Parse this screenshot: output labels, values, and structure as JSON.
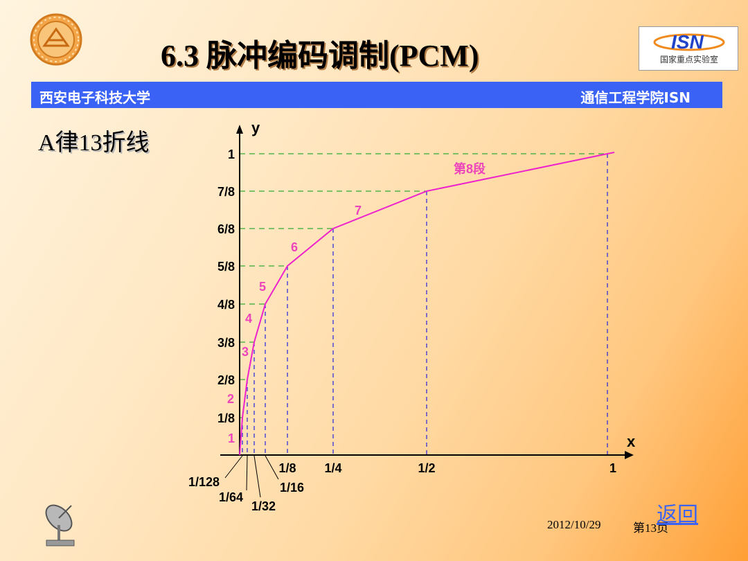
{
  "header": {
    "title": "6.3 脉冲编码调制(PCM)",
    "university": "西安电子科技大学",
    "department": "通信工程学院ISN",
    "lab_logo_text": "国家重点实验室"
  },
  "subtitle": "A律13折线",
  "chart_data": {
    "type": "line",
    "xlabel": "x",
    "ylabel": "y",
    "x_ticks": [
      "1/128",
      "1/64",
      "1/32",
      "1/16",
      "1/8",
      "1/4",
      "1/2",
      "1"
    ],
    "y_ticks": [
      "1/8",
      "2/8",
      "3/8",
      "4/8",
      "5/8",
      "6/8",
      "7/8",
      "1"
    ],
    "series": [
      {
        "points": [
          [
            0,
            0
          ],
          [
            0.0078125,
            0.125
          ],
          [
            0.015625,
            0.25
          ],
          [
            0.03125,
            0.375
          ],
          [
            0.0625,
            0.5
          ],
          [
            0.125,
            0.625
          ],
          [
            0.25,
            0.75
          ],
          [
            0.5,
            0.875
          ],
          [
            1,
            1
          ]
        ],
        "color": "#ee22cc"
      }
    ],
    "segment_labels": [
      "1",
      "2",
      "3",
      "4",
      "5",
      "6",
      "7",
      "第8段"
    ],
    "colors": {
      "curve": "#ee22cc",
      "vertical_guides": "#2222dd",
      "horizontal_guides": "#33aa33",
      "segment_labels": "#ee44bb"
    }
  },
  "footer": {
    "date": "2012/10/29",
    "page": "第13页",
    "return_label": "返回"
  },
  "icons": [
    "university-seal-icon",
    "isn-logo-icon",
    "satellite-dish-icon"
  ]
}
